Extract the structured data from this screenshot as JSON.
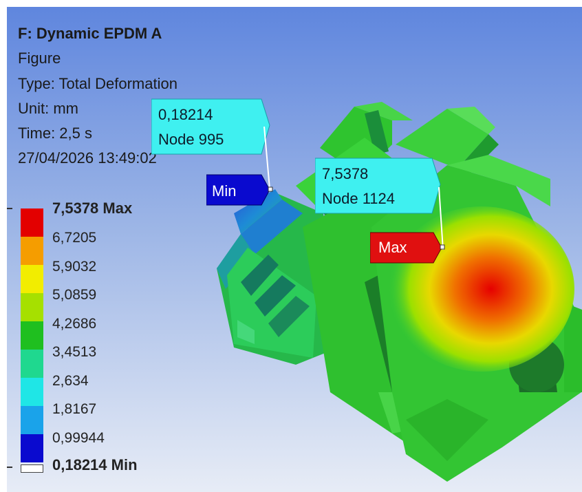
{
  "header": {
    "title": "F: Dynamic EPDM A",
    "subtitle": "Figure",
    "type": "Type: Total Deformation",
    "unit": "Unit: mm",
    "time": "Time: 2,5 s",
    "datetime": "27/04/2026 13:49:02"
  },
  "legend": {
    "max_label": "7,5378 Max",
    "min_label": "0,18214 Min",
    "levels": [
      "6,7205",
      "5,9032",
      "5,0859",
      "4,2686",
      "3,4513",
      "2,634",
      "1,8167",
      "0,99944"
    ],
    "colors": [
      "#e30000",
      "#f59d00",
      "#f2ed00",
      "#a6e000",
      "#1fbf1f",
      "#1fd88f",
      "#1fe6e6",
      "#1aa3ea",
      "#0a0acf"
    ]
  },
  "probes": {
    "min": {
      "value": "0,18214",
      "node": "Node 995",
      "tag": "Min",
      "tag_color": "#0a0acf",
      "callout_color": "#3ff0f0"
    },
    "max": {
      "value": "7,5378",
      "node": "Node 1124",
      "tag": "Max",
      "tag_color": "#e01010",
      "callout_color": "#3ff0f0"
    }
  }
}
